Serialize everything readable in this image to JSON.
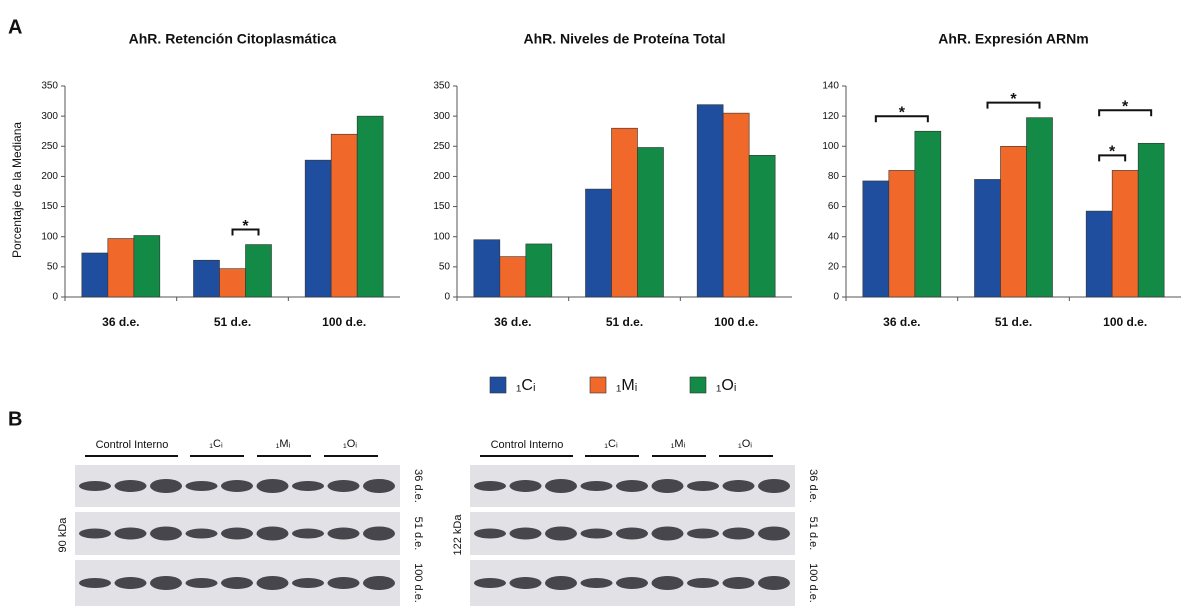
{
  "chart_data": [
    {
      "type": "bar",
      "title": "AhR. Retención Citoplasmática",
      "ylabel": "Porcentaje de la Mediana",
      "categories": [
        "36 d.e.",
        "51 d.e.",
        "100 d.e."
      ],
      "series": [
        {
          "name": "₁Cᵢ",
          "color": "#1f4e9e",
          "values": [
            73,
            61,
            227
          ]
        },
        {
          "name": "₁Mᵢ",
          "color": "#f0692a",
          "values": [
            97,
            47,
            270
          ]
        },
        {
          "name": "₁Oᵢ",
          "color": "#138a45",
          "values": [
            102,
            87,
            300
          ]
        }
      ],
      "ylim": [
        0,
        350
      ],
      "yticks": [
        0,
        50,
        100,
        150,
        200,
        250,
        300,
        350
      ],
      "annotations": [
        {
          "text": "*",
          "category": "51 d.e.",
          "between": [
            "₁Mᵢ",
            "₁Oᵢ"
          ]
        }
      ]
    },
    {
      "type": "bar",
      "title": "AhR. Niveles de Proteína Total",
      "categories": [
        "36 d.e.",
        "51 d.e.",
        "100 d.e."
      ],
      "series": [
        {
          "name": "₁Cᵢ",
          "color": "#1f4e9e",
          "values": [
            95,
            179,
            319
          ]
        },
        {
          "name": "₁Mᵢ",
          "color": "#f0692a",
          "values": [
            67,
            280,
            305
          ]
        },
        {
          "name": "₁Oᵢ",
          "color": "#138a45",
          "values": [
            88,
            248,
            235
          ]
        }
      ],
      "ylim": [
        0,
        350
      ],
      "yticks": [
        0,
        50,
        100,
        150,
        200,
        250,
        300,
        350
      ]
    },
    {
      "type": "bar",
      "title": "AhR. Expresión ARNm",
      "categories": [
        "36 d.e.",
        "51 d.e.",
        "100 d.e."
      ],
      "series": [
        {
          "name": "₁Cᵢ",
          "color": "#1f4e9e",
          "values": [
            77,
            78,
            57
          ]
        },
        {
          "name": "₁Mᵢ",
          "color": "#f0692a",
          "values": [
            84,
            100,
            84
          ]
        },
        {
          "name": "₁Oᵢ",
          "color": "#138a45",
          "values": [
            110,
            119,
            102
          ]
        }
      ],
      "ylim": [
        0,
        140
      ],
      "yticks": [
        0,
        20,
        40,
        60,
        80,
        100,
        120,
        140
      ],
      "annotations": [
        {
          "text": "*",
          "category": "36 d.e.",
          "between": [
            "₁Cᵢ",
            "₁Oᵢ"
          ]
        },
        {
          "text": "*",
          "category": "51 d.e.",
          "between": [
            "₁Cᵢ",
            "₁Oᵢ"
          ]
        },
        {
          "text": "*",
          "category": "100 d.e.",
          "between": [
            "₁Cᵢ",
            "₁Mᵢ"
          ]
        },
        {
          "text": "*",
          "category": "100 d.e.",
          "between": [
            "₁Cᵢ",
            "₁Oᵢ"
          ]
        }
      ]
    }
  ],
  "panels": [
    "A",
    "B"
  ],
  "blots": [
    {
      "marker": "90 kDa",
      "header": "Control Interno",
      "groups": [
        "₁Cᵢ",
        "₁Mᵢ",
        "₁Oᵢ"
      ],
      "rows": [
        "36 d.e.",
        "51 d.e.",
        "100 d.e."
      ]
    },
    {
      "marker": "122 kDa",
      "header": "Control Interno",
      "groups": [
        "₁Cᵢ",
        "₁Mᵢ",
        "₁Oᵢ"
      ],
      "rows": [
        "36 d.e.",
        "51 d.e.",
        "100 d.e."
      ]
    }
  ]
}
